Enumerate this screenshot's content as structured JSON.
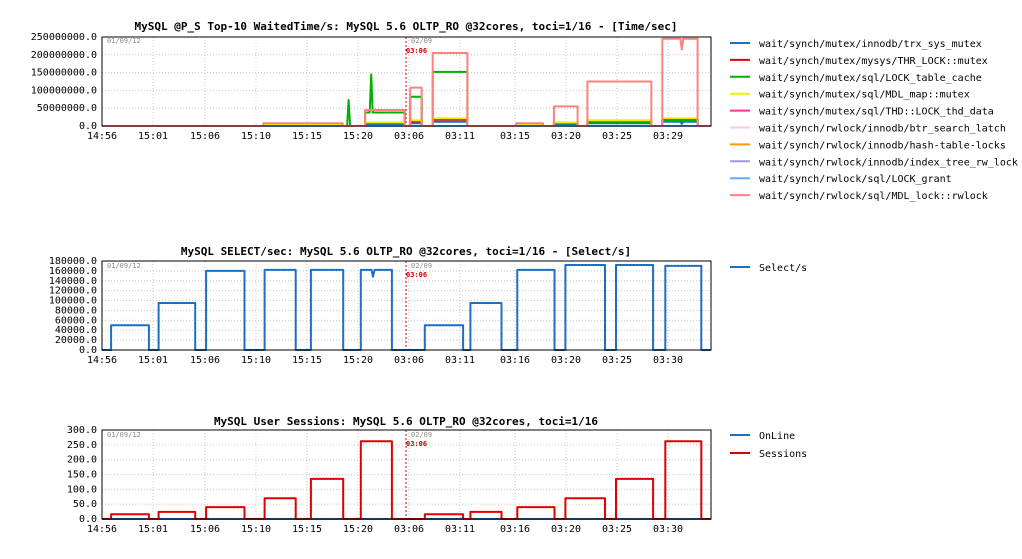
{
  "chart_data": [
    {
      "type": "line",
      "title": "MySQL @P_S Top-10 WaitedTime/s: MySQL 5.6 OLTP_RO @32cores, toci=1/16 - [Time/sec]",
      "xlabel": "",
      "ylabel": "",
      "ylim": [
        0,
        250000000
      ],
      "ytick_labels": [
        "250000000.0",
        "200000000.0",
        "150000000.0",
        "100000000.0",
        "50000000.0",
        "0.0"
      ],
      "xtick_labels": [
        "14:56",
        "15:01",
        "15:06",
        "15:10",
        "15:15",
        "15:20",
        "03:06",
        "03:11",
        "03:15",
        "03:20",
        "03:25",
        "03:29"
      ],
      "date_left": "01/09/12",
      "date_right": "02/09",
      "marker_label": "03:06",
      "grid": true,
      "legend_position": "right",
      "series": [
        {
          "name": "wait/synch/mutex/innodb/trx_sys_mutex",
          "color": "#1f6fbf",
          "levels": [
            0,
            0,
            2000000,
            5000000,
            8000000,
            12000000,
            0,
            2000000,
            5000000,
            8000000,
            12000000
          ],
          "spikes": [
            [
              0.952,
              6000000
            ]
          ]
        },
        {
          "name": "wait/synch/mutex/mysys/THR_LOCK::mutex",
          "color": "#e00000",
          "levels": [
            0,
            0,
            3000000,
            9000000,
            13000000,
            18000000,
            0,
            3000000,
            9000000,
            13000000,
            18000000
          ]
        },
        {
          "name": "wait/synch/mutex/sql/LOCK_table_cache",
          "color": "#00b000",
          "levels": [
            0,
            0,
            4000000,
            38000000,
            82000000,
            152000000,
            0,
            1000000,
            8000000,
            10000000,
            14000000
          ],
          "spikes": [
            [
              0.405,
              73000000
            ],
            [
              0.442,
              145000000
            ]
          ]
        },
        {
          "name": "wait/synch/mutex/sql/MDL_map::mutex",
          "color": "#f0f000",
          "levels": [
            0,
            0,
            3000000,
            10000000,
            16000000,
            22000000,
            0,
            3000000,
            10000000,
            16000000,
            22000000
          ]
        },
        {
          "name": "wait/synch/mutex/sql/THD::LOCK_thd_data",
          "color": "#ff3399",
          "levels": [
            0,
            0,
            0,
            0,
            0,
            0,
            0,
            0,
            0,
            0,
            0
          ]
        },
        {
          "name": "wait/synch/rwlock/innodb/btr_search_latch",
          "color": "#ffcccc",
          "levels": [
            0,
            0,
            0,
            0,
            0,
            0,
            0,
            0,
            0,
            0,
            0
          ]
        },
        {
          "name": "wait/synch/rwlock/innodb/hash-table-locks",
          "color": "#ff9900",
          "levels": [
            0,
            0,
            0,
            0,
            0,
            0,
            0,
            0,
            0,
            0,
            0
          ]
        },
        {
          "name": "wait/synch/rwlock/innodb/index_tree_rw_lock",
          "color": "#9999dd",
          "levels": [
            0,
            0,
            0,
            0,
            0,
            0,
            0,
            0,
            0,
            0,
            0
          ]
        },
        {
          "name": "wait/synch/rwlock/sql/LOCK_grant",
          "color": "#66aaff",
          "levels": [
            0,
            0,
            0,
            0,
            0,
            0,
            0,
            0,
            0,
            0,
            0
          ]
        },
        {
          "name": "wait/synch/rwlock/sql/MDL_lock::rwlock",
          "color": "#ff8080",
          "levels": [
            0,
            0,
            8000000,
            45000000,
            108000000,
            205000000,
            0,
            8000000,
            55000000,
            125000000,
            245000000
          ],
          "spikes": [
            [
              0.952,
              215000000
            ]
          ]
        }
      ]
    },
    {
      "type": "line",
      "title": "MySQL SELECT/sec: MySQL 5.6 OLTP_RO @32cores, toci=1/16 - [Select/s]",
      "xlabel": "",
      "ylabel": "",
      "ylim": [
        0,
        180000
      ],
      "ytick_labels": [
        "180000.0",
        "160000.0",
        "140000.0",
        "120000.0",
        "100000.0",
        "80000.0",
        "60000.0",
        "40000.0",
        "20000.0",
        "0.0"
      ],
      "xtick_labels": [
        "14:56",
        "15:01",
        "15:06",
        "15:10",
        "15:15",
        "15:20",
        "03:06",
        "03:11",
        "03:16",
        "03:20",
        "03:25",
        "03:30"
      ],
      "date_left": "01/09/12",
      "date_right": "02/09",
      "marker_label": "03:06",
      "grid": true,
      "legend_position": "right",
      "series": [
        {
          "name": "Select/s",
          "color": "#1f6fbf",
          "levels": [
            0,
            50000,
            95000,
            160000,
            162000,
            162000,
            162000,
            0,
            50000,
            95000,
            162000,
            172000,
            172000,
            170000
          ],
          "spikes": [
            [
              0.445,
              148000
            ]
          ]
        }
      ]
    },
    {
      "type": "line",
      "title": "MySQL User Sessions: MySQL 5.6 OLTP_RO @32cores, toci=1/16",
      "xlabel": "",
      "ylabel": "",
      "ylim": [
        0,
        300
      ],
      "ytick_labels": [
        "300.0",
        "250.0",
        "200.0",
        "150.0",
        "100.0",
        "50.0",
        "0.0"
      ],
      "xtick_labels": [
        "14:56",
        "15:01",
        "15:06",
        "15:10",
        "15:15",
        "15:20",
        "03:06",
        "03:11",
        "03:16",
        "03:20",
        "03:25",
        "03:30"
      ],
      "date_left": "01/09/12",
      "date_right": "02/09",
      "marker_label": "03:06",
      "grid": true,
      "legend_position": "right",
      "series": [
        {
          "name": "OnLine",
          "color": "#1f6fbf",
          "levels": [
            0,
            0,
            0,
            0,
            0,
            0,
            0,
            0,
            0,
            0,
            0
          ]
        },
        {
          "name": "Sessions",
          "color": "#e00000",
          "levels": [
            0,
            16,
            24,
            40,
            70,
            135,
            262,
            0,
            16,
            24,
            40,
            70,
            135,
            262
          ]
        }
      ]
    }
  ]
}
